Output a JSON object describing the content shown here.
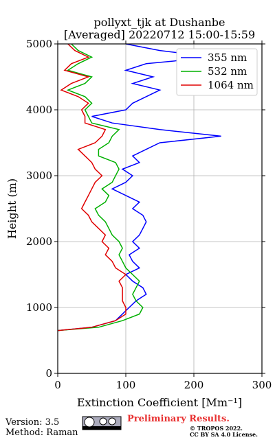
{
  "chart_data": {
    "type": "profile",
    "title": "pollyxt_tjk at Dushanbe",
    "subtitle": "[Averaged] 20220712 15:00-15:59",
    "x_label": "Extinction Coefficient [Mm⁻¹]",
    "y_label": "Height (m)",
    "xlim": [
      0,
      300
    ],
    "xticks": [
      0,
      100,
      200,
      300
    ],
    "ylim": [
      0,
      5000
    ],
    "yticks": [
      0,
      1000,
      2000,
      3000,
      4000,
      5000
    ],
    "grid": true,
    "legend": "upper right",
    "y": [
      650,
      700,
      800,
      900,
      1000,
      1100,
      1200,
      1300,
      1400,
      1500,
      1600,
      1700,
      1800,
      1900,
      2000,
      2100,
      2200,
      2300,
      2400,
      2500,
      2600,
      2700,
      2800,
      2900,
      3000,
      3100,
      3200,
      3300,
      3400,
      3500,
      3600,
      3700,
      3800,
      3900,
      4000,
      4100,
      4200,
      4300,
      4400,
      4500,
      4600,
      4700,
      4800,
      4900,
      5000
    ],
    "series": [
      {
        "name": "355 nm",
        "color": "#0000ff",
        "values": [
          0,
          50,
          85,
          95,
          105,
          115,
          130,
          125,
          110,
          100,
          120,
          110,
          105,
          120,
          110,
          120,
          125,
          130,
          125,
          110,
          120,
          100,
          80,
          100,
          110,
          95,
          120,
          110,
          130,
          150,
          240,
          150,
          80,
          50,
          100,
          110,
          130,
          150,
          110,
          140,
          100,
          130,
          230,
          150,
          100
        ]
      },
      {
        "name": "532 nm",
        "color": "#00b000",
        "values": [
          0,
          60,
          95,
          120,
          125,
          115,
          110,
          115,
          120,
          110,
          100,
          95,
          90,
          95,
          90,
          80,
          75,
          70,
          60,
          55,
          70,
          75,
          65,
          80,
          85,
          90,
          85,
          60,
          60,
          75,
          80,
          90,
          50,
          45,
          40,
          50,
          40,
          15,
          40,
          50,
          15,
          30,
          50,
          30,
          20
        ]
      },
      {
        "name": "1064 nm",
        "color": "#e00000",
        "values": [
          0,
          50,
          85,
          100,
          100,
          95,
          95,
          95,
          90,
          100,
          85,
          80,
          70,
          75,
          65,
          70,
          60,
          50,
          45,
          35,
          40,
          45,
          50,
          55,
          65,
          55,
          50,
          40,
          30,
          55,
          65,
          70,
          40,
          40,
          35,
          45,
          30,
          5,
          20,
          45,
          10,
          20,
          45,
          25,
          15
        ]
      }
    ],
    "footer": {
      "version": "Version: 3.5",
      "method": "Method: Raman",
      "preliminary": "Preliminary Results.",
      "copyright": "© TROPOS 2022.",
      "license": "CC BY SA 4.0 License."
    }
  }
}
